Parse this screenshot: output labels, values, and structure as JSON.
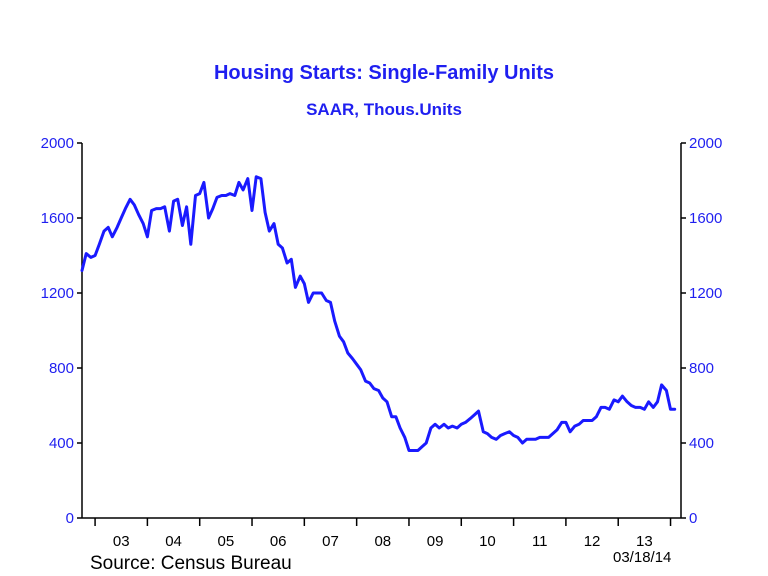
{
  "chart_data": {
    "type": "line",
    "title": "Housing Starts: Single-Family Units",
    "subtitle": "SAAR, Thous.Units",
    "ylim": [
      0,
      2000
    ],
    "yticks": [
      0,
      400,
      800,
      1200,
      1600,
      2000
    ],
    "yticklabels": [
      "0",
      "400",
      "800",
      "1200",
      "1600",
      "2000"
    ],
    "xlim": [
      2002.75,
      2014.2
    ],
    "xticklabels": [
      "03",
      "04",
      "05",
      "06",
      "07",
      "08",
      "09",
      "10",
      "11",
      "12",
      "13"
    ],
    "grid": false,
    "line_color": "#1a1aff",
    "axis_label_color": "#1f1ff0",
    "series": [
      {
        "values": [
          [
            2002.75,
            1320
          ],
          [
            2002.83,
            1410
          ],
          [
            2002.92,
            1390
          ],
          [
            2003.0,
            1400
          ],
          [
            2003.08,
            1460
          ],
          [
            2003.17,
            1530
          ],
          [
            2003.25,
            1550
          ],
          [
            2003.33,
            1500
          ],
          [
            2003.42,
            1550
          ],
          [
            2003.5,
            1600
          ],
          [
            2003.58,
            1650
          ],
          [
            2003.67,
            1700
          ],
          [
            2003.75,
            1670
          ],
          [
            2003.83,
            1620
          ],
          [
            2003.92,
            1570
          ],
          [
            2004.0,
            1500
          ],
          [
            2004.08,
            1640
          ],
          [
            2004.17,
            1650
          ],
          [
            2004.25,
            1650
          ],
          [
            2004.33,
            1660
          ],
          [
            2004.42,
            1530
          ],
          [
            2004.5,
            1690
          ],
          [
            2004.58,
            1700
          ],
          [
            2004.67,
            1560
          ],
          [
            2004.75,
            1660
          ],
          [
            2004.83,
            1460
          ],
          [
            2004.92,
            1720
          ],
          [
            2005.0,
            1730
          ],
          [
            2005.08,
            1790
          ],
          [
            2005.17,
            1600
          ],
          [
            2005.25,
            1650
          ],
          [
            2005.33,
            1710
          ],
          [
            2005.42,
            1720
          ],
          [
            2005.5,
            1720
          ],
          [
            2005.58,
            1730
          ],
          [
            2005.67,
            1720
          ],
          [
            2005.75,
            1790
          ],
          [
            2005.83,
            1750
          ],
          [
            2005.92,
            1810
          ],
          [
            2006.0,
            1640
          ],
          [
            2006.08,
            1820
          ],
          [
            2006.17,
            1810
          ],
          [
            2006.25,
            1630
          ],
          [
            2006.33,
            1530
          ],
          [
            2006.42,
            1570
          ],
          [
            2006.5,
            1460
          ],
          [
            2006.58,
            1440
          ],
          [
            2006.67,
            1360
          ],
          [
            2006.75,
            1380
          ],
          [
            2006.83,
            1230
          ],
          [
            2006.92,
            1290
          ],
          [
            2007.0,
            1250
          ],
          [
            2007.08,
            1150
          ],
          [
            2007.17,
            1200
          ],
          [
            2007.25,
            1200
          ],
          [
            2007.33,
            1200
          ],
          [
            2007.42,
            1160
          ],
          [
            2007.5,
            1150
          ],
          [
            2007.58,
            1050
          ],
          [
            2007.67,
            970
          ],
          [
            2007.75,
            940
          ],
          [
            2007.83,
            880
          ],
          [
            2007.92,
            850
          ],
          [
            2008.0,
            820
          ],
          [
            2008.08,
            790
          ],
          [
            2008.17,
            730
          ],
          [
            2008.25,
            720
          ],
          [
            2008.33,
            690
          ],
          [
            2008.42,
            680
          ],
          [
            2008.5,
            640
          ],
          [
            2008.58,
            620
          ],
          [
            2008.67,
            540
          ],
          [
            2008.75,
            540
          ],
          [
            2008.83,
            480
          ],
          [
            2008.92,
            430
          ],
          [
            2009.0,
            360
          ],
          [
            2009.08,
            360
          ],
          [
            2009.17,
            360
          ],
          [
            2009.25,
            380
          ],
          [
            2009.33,
            400
          ],
          [
            2009.42,
            480
          ],
          [
            2009.5,
            500
          ],
          [
            2009.58,
            480
          ],
          [
            2009.67,
            500
          ],
          [
            2009.75,
            480
          ],
          [
            2009.83,
            490
          ],
          [
            2009.92,
            480
          ],
          [
            2010.0,
            500
          ],
          [
            2010.08,
            510
          ],
          [
            2010.17,
            530
          ],
          [
            2010.25,
            550
          ],
          [
            2010.33,
            570
          ],
          [
            2010.42,
            460
          ],
          [
            2010.5,
            450
          ],
          [
            2010.58,
            430
          ],
          [
            2010.67,
            420
          ],
          [
            2010.75,
            440
          ],
          [
            2010.83,
            450
          ],
          [
            2010.92,
            460
          ],
          [
            2011.0,
            440
          ],
          [
            2011.08,
            430
          ],
          [
            2011.17,
            400
          ],
          [
            2011.25,
            420
          ],
          [
            2011.33,
            420
          ],
          [
            2011.42,
            420
          ],
          [
            2011.5,
            430
          ],
          [
            2011.58,
            430
          ],
          [
            2011.67,
            430
          ],
          [
            2011.75,
            450
          ],
          [
            2011.83,
            470
          ],
          [
            2011.92,
            510
          ],
          [
            2012.0,
            510
          ],
          [
            2012.08,
            460
          ],
          [
            2012.17,
            490
          ],
          [
            2012.25,
            500
          ],
          [
            2012.33,
            520
          ],
          [
            2012.42,
            520
          ],
          [
            2012.5,
            520
          ],
          [
            2012.58,
            540
          ],
          [
            2012.67,
            590
          ],
          [
            2012.75,
            590
          ],
          [
            2012.83,
            580
          ],
          [
            2012.92,
            630
          ],
          [
            2013.0,
            620
          ],
          [
            2013.08,
            650
          ],
          [
            2013.17,
            620
          ],
          [
            2013.25,
            600
          ],
          [
            2013.33,
            590
          ],
          [
            2013.42,
            590
          ],
          [
            2013.5,
            580
          ],
          [
            2013.58,
            620
          ],
          [
            2013.67,
            590
          ],
          [
            2013.75,
            620
          ],
          [
            2013.83,
            710
          ],
          [
            2013.92,
            680
          ],
          [
            2014.0,
            580
          ],
          [
            2014.08,
            580
          ]
        ]
      }
    ]
  },
  "footer": {
    "source": "Source:  Census Bureau",
    "date": "03/18/14"
  }
}
